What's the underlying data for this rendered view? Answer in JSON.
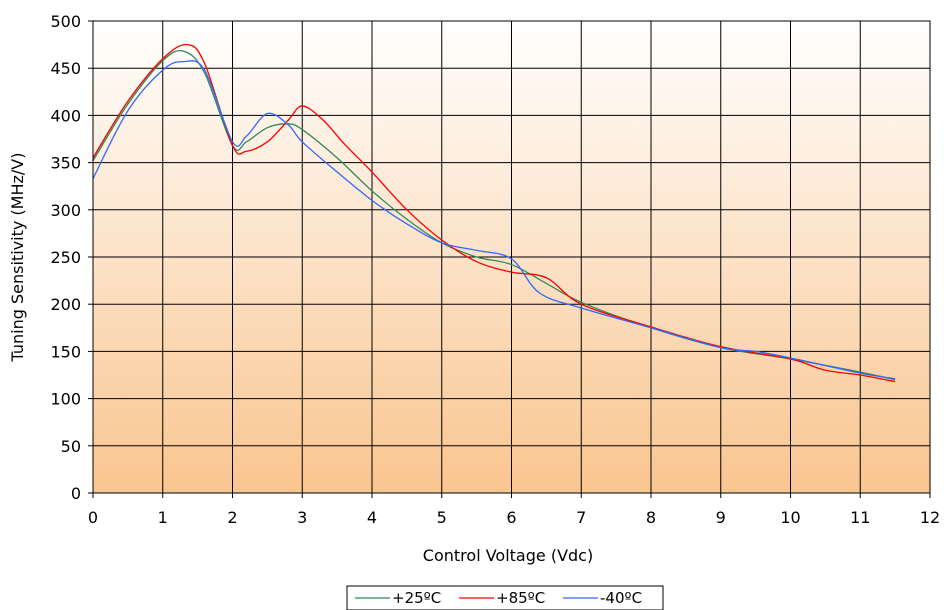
{
  "chart_data": {
    "type": "line",
    "title": "",
    "xlabel": "Control Voltage (Vdc)",
    "ylabel": "Tuning Sensitivity (MHz/V)",
    "xlim": [
      0,
      12
    ],
    "ylim": [
      0,
      500
    ],
    "x_ticks": [
      "0",
      "1",
      "2",
      "3",
      "4",
      "5",
      "6",
      "7",
      "8",
      "9",
      "10",
      "11",
      "12"
    ],
    "y_ticks": [
      "0",
      "50",
      "100",
      "150",
      "200",
      "250",
      "300",
      "350",
      "400",
      "450",
      "500"
    ],
    "grid": true,
    "legend_position": "bottom-center",
    "background": "vertical gradient, white at top to light orange at bottom",
    "series": [
      {
        "name": "+25ºC",
        "color": "#2e8b57",
        "x": [
          0,
          0.5,
          1.0,
          1.3,
          1.6,
          2.0,
          2.2,
          2.5,
          2.8,
          3.0,
          3.5,
          4.0,
          4.5,
          5.0,
          5.5,
          6.0,
          6.5,
          7.0,
          8.0,
          9.0,
          10.0,
          11.0,
          11.5
        ],
        "y": [
          352,
          412,
          458,
          468,
          445,
          368,
          372,
          387,
          391,
          385,
          355,
          320,
          290,
          265,
          250,
          242,
          222,
          202,
          175,
          154,
          142,
          128,
          120
        ]
      },
      {
        "name": "+85ºC",
        "color": "#ff0000",
        "x": [
          0,
          0.5,
          1.0,
          1.35,
          1.6,
          2.0,
          2.2,
          2.5,
          2.8,
          3.0,
          3.3,
          3.6,
          4.0,
          4.5,
          5.0,
          5.5,
          6.0,
          6.5,
          7.0,
          8.0,
          9.0,
          10.0,
          10.5,
          11.0,
          11.5
        ],
        "y": [
          355,
          415,
          460,
          475,
          455,
          368,
          362,
          372,
          395,
          410,
          395,
          370,
          340,
          300,
          268,
          245,
          234,
          228,
          200,
          176,
          155,
          142,
          130,
          125,
          118
        ]
      },
      {
        "name": "-40ºC",
        "color": "#3366ff",
        "x": [
          0,
          0.5,
          1.0,
          1.3,
          1.6,
          2.0,
          2.2,
          2.5,
          2.8,
          3.0,
          3.5,
          4.0,
          4.5,
          5.0,
          5.5,
          6.0,
          6.4,
          7.0,
          8.0,
          9.0,
          9.5,
          10.0,
          11.0,
          11.5
        ],
        "y": [
          333,
          405,
          448,
          457,
          448,
          372,
          378,
          402,
          390,
          372,
          340,
          310,
          285,
          265,
          257,
          248,
          212,
          196,
          175,
          154,
          150,
          143,
          127,
          121
        ]
      }
    ]
  }
}
